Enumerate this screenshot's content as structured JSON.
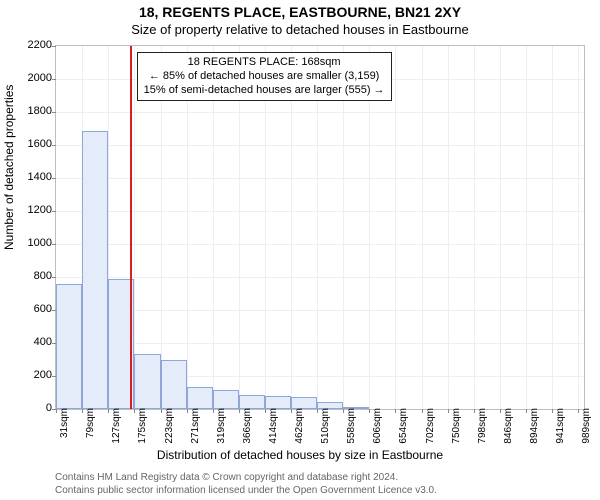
{
  "title": "18, REGENTS PLACE, EASTBOURNE, BN21 2XY",
  "subtitle": "Size of property relative to detached houses in Eastbourne",
  "ylabel": "Number of detached properties",
  "xlabel": "Distribution of detached houses by size in Eastbourne",
  "footer_line1": "Contains HM Land Registry data © Crown copyright and database right 2024.",
  "footer_line2": "Contains public sector information licensed under the Open Government Licence v3.0.",
  "annotation": {
    "line1": "18 REGENTS PLACE: 168sqm",
    "line2": "← 85% of detached houses are smaller (3,159)",
    "line3": "15% of semi-detached houses are larger (555) →"
  },
  "chart": {
    "type": "histogram",
    "ylim": [
      0,
      2200
    ],
    "ytick_step": 200,
    "xlim_sqm": [
      31,
      1000
    ],
    "xticks_sqm": [
      31,
      79,
      127,
      175,
      223,
      271,
      319,
      366,
      414,
      462,
      510,
      558,
      606,
      654,
      702,
      750,
      798,
      846,
      894,
      941,
      989
    ],
    "reference_sqm": 168,
    "bars": [
      {
        "x0": 31,
        "x1": 79,
        "count": 760
      },
      {
        "x0": 79,
        "x1": 127,
        "count": 1685
      },
      {
        "x0": 127,
        "x1": 175,
        "count": 790
      },
      {
        "x0": 175,
        "x1": 223,
        "count": 335
      },
      {
        "x0": 223,
        "x1": 271,
        "count": 295
      },
      {
        "x0": 271,
        "x1": 319,
        "count": 135
      },
      {
        "x0": 319,
        "x1": 366,
        "count": 115
      },
      {
        "x0": 366,
        "x1": 414,
        "count": 85
      },
      {
        "x0": 414,
        "x1": 462,
        "count": 80
      },
      {
        "x0": 462,
        "x1": 510,
        "count": 75
      },
      {
        "x0": 510,
        "x1": 558,
        "count": 45
      },
      {
        "x0": 558,
        "x1": 606,
        "count": 10
      },
      {
        "x0": 606,
        "x1": 654,
        "count": 0
      },
      {
        "x0": 654,
        "x1": 702,
        "count": 0
      }
    ],
    "bar_fill": "#e4ecfa",
    "bar_border": "#8ea7d8",
    "grid_color": "#ededf5",
    "plot_border": "#bfbfbf",
    "ref_color": "#d62020",
    "background": "#ffffff",
    "title_fontsize": 14,
    "subtitle_fontsize": 13,
    "axis_label_fontsize": 12,
    "tick_fontsize": 11,
    "footer_color": "#666666"
  }
}
